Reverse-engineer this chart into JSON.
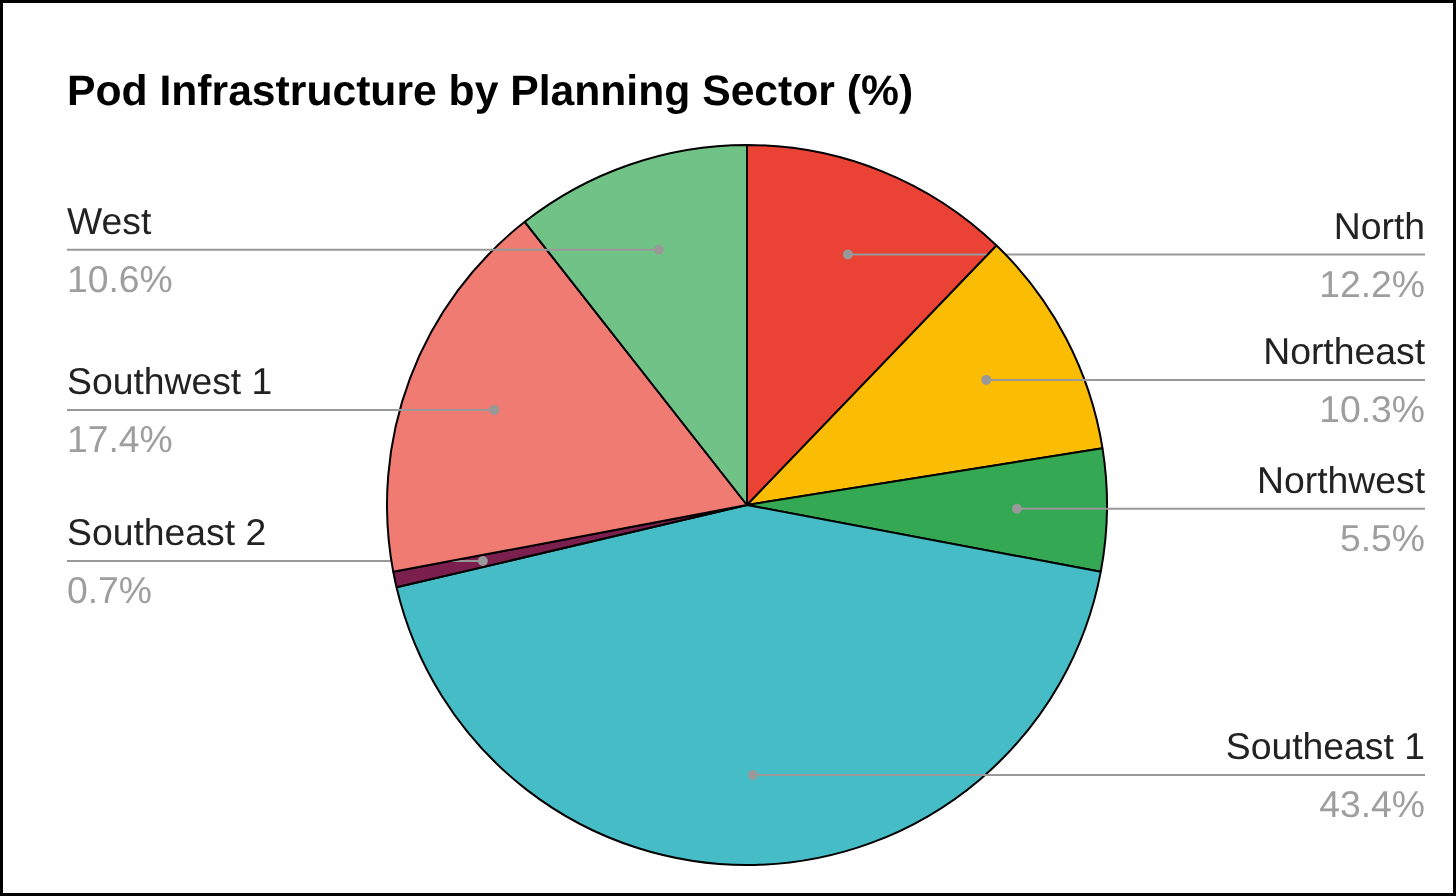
{
  "chart_data": {
    "type": "pie",
    "title": "Pod Infrastructure by Planning Sector (%)",
    "categories": [
      "North",
      "Northeast",
      "Northwest",
      "Southeast 1",
      "Southeast 2",
      "Southwest 1",
      "West"
    ],
    "values": [
      12.2,
      10.3,
      5.5,
      43.4,
      0.7,
      17.4,
      10.6
    ],
    "value_labels": [
      "12.2%",
      "10.3%",
      "5.5%",
      "43.4%",
      "0.7%",
      "17.4%",
      "10.6%"
    ],
    "colors": [
      "#ea4335",
      "#fbbc04",
      "#34a853",
      "#46bdc6",
      "#7b1f4f",
      "#f07b72",
      "#71c287"
    ]
  }
}
